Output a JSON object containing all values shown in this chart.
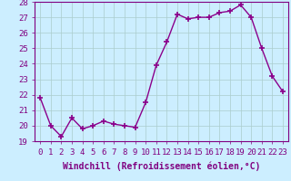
{
  "x": [
    0,
    1,
    2,
    3,
    4,
    5,
    6,
    7,
    8,
    9,
    10,
    11,
    12,
    13,
    14,
    15,
    16,
    17,
    18,
    19,
    20,
    21,
    22,
    23
  ],
  "y": [
    21.8,
    20.0,
    19.3,
    20.5,
    19.8,
    20.0,
    20.3,
    20.1,
    20.0,
    19.9,
    21.5,
    23.9,
    25.4,
    27.2,
    26.9,
    27.0,
    27.0,
    27.3,
    27.4,
    27.8,
    27.0,
    25.0,
    23.2,
    22.2
  ],
  "line_color": "#8B008B",
  "marker": "+",
  "marker_size": 4,
  "bg_color": "#cceeff",
  "grid_color": "#aacccc",
  "xlabel": "Windchill (Refroidissement éolien,°C)",
  "xlabel_fontsize": 7,
  "tick_fontsize": 6.5,
  "ylim": [
    19,
    28
  ],
  "yticks": [
    19,
    20,
    21,
    22,
    23,
    24,
    25,
    26,
    27,
    28
  ],
  "xticks": [
    0,
    1,
    2,
    3,
    4,
    5,
    6,
    7,
    8,
    9,
    10,
    11,
    12,
    13,
    14,
    15,
    16,
    17,
    18,
    19,
    20,
    21,
    22,
    23
  ],
  "linewidth": 1.0
}
